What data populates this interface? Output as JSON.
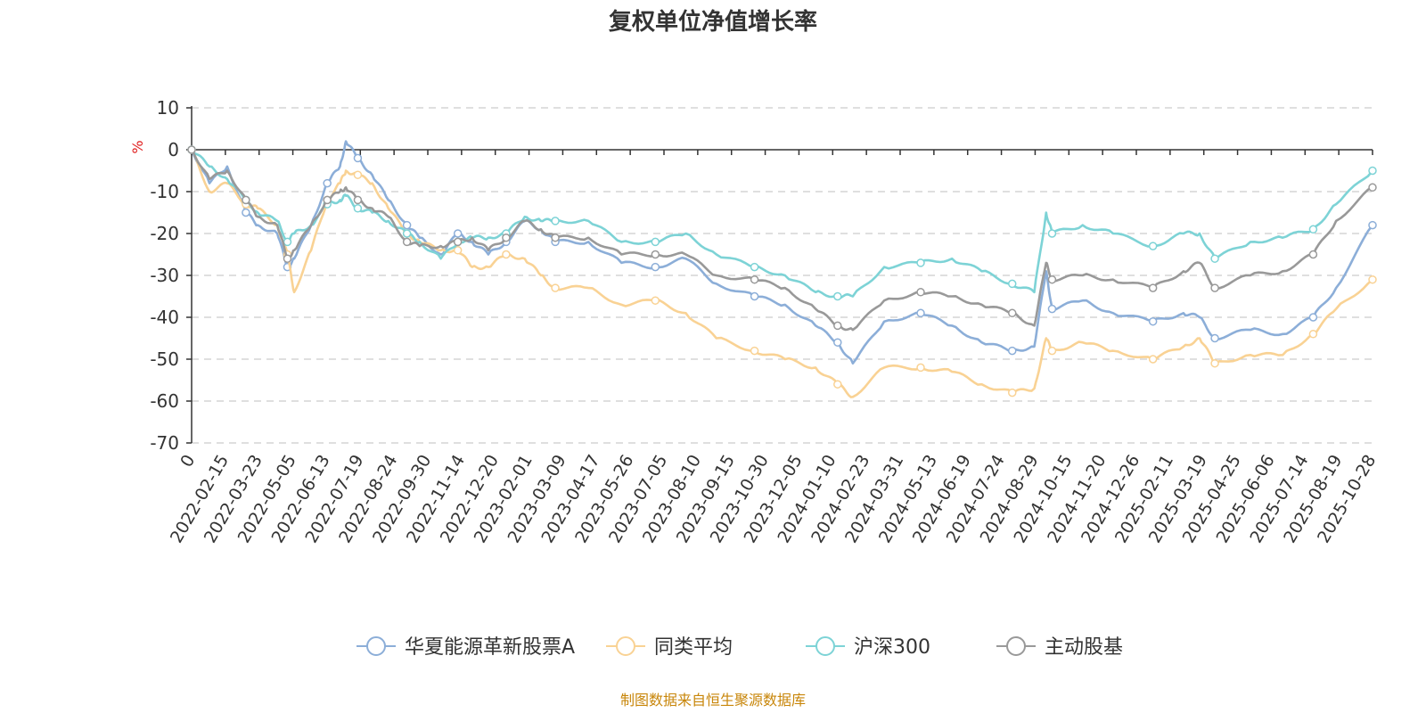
{
  "chart_data": {
    "type": "line",
    "title": "复权单位净值增长率",
    "ylabel": "%",
    "ylim": [
      -70,
      10
    ],
    "yticks": [
      10,
      0,
      -10,
      -20,
      -30,
      -40,
      -50,
      -60,
      -70
    ],
    "x_first_label": "0",
    "x_start": "2022-01-04",
    "x_end": "2025-10-28",
    "x_labels": [
      "2022-02-15",
      "2022-03-23",
      "2022-05-05",
      "2022-06-13",
      "2022-07-19",
      "2022-08-24",
      "2022-09-30",
      "2022-11-14",
      "2022-12-20",
      "2023-02-01",
      "2023-03-09",
      "2023-04-17",
      "2023-05-26",
      "2023-07-05",
      "2023-08-10",
      "2023-09-15",
      "2023-10-30",
      "2023-12-05",
      "2024-01-10",
      "2024-02-23",
      "2024-03-31",
      "2024-05-13",
      "2024-06-19",
      "2024-07-24",
      "2024-08-29",
      "2024-10-15",
      "2024-11-20",
      "2024-12-26",
      "2025-02-11",
      "2025-03-19",
      "2025-04-25",
      "2025-06-06",
      "2025-07-14",
      "2025-08-19",
      "2025-10-28"
    ],
    "x": [
      "2022-01-04",
      "2022-01-25",
      "2022-02-15",
      "2022-03-09",
      "2022-03-23",
      "2022-04-15",
      "2022-04-27",
      "2022-05-05",
      "2022-05-25",
      "2022-06-13",
      "2022-06-28",
      "2022-07-05",
      "2022-07-19",
      "2022-08-05",
      "2022-08-24",
      "2022-09-15",
      "2022-09-30",
      "2022-10-25",
      "2022-11-14",
      "2022-12-01",
      "2022-12-20",
      "2023-01-10",
      "2023-02-01",
      "2023-02-20",
      "2023-03-09",
      "2023-04-17",
      "2023-05-26",
      "2023-07-05",
      "2023-08-10",
      "2023-09-15",
      "2023-10-30",
      "2023-12-05",
      "2024-01-10",
      "2024-02-05",
      "2024-02-23",
      "2024-03-31",
      "2024-05-13",
      "2024-06-19",
      "2024-07-24",
      "2024-08-29",
      "2024-09-24",
      "2024-10-08",
      "2024-10-15",
      "2024-11-20",
      "2024-12-26",
      "2025-02-11",
      "2025-03-19",
      "2025-04-07",
      "2025-04-25",
      "2025-06-06",
      "2025-07-14",
      "2025-08-19",
      "2025-09-15",
      "2025-10-28"
    ],
    "series": [
      {
        "name": "华夏能源革新股票A",
        "color": "#8caed8",
        "values": [
          0,
          -8,
          -4,
          -15,
          -18,
          -20,
          -28,
          -26,
          -18,
          -8,
          -4,
          2,
          -2,
          -6,
          -12,
          -18,
          -21,
          -25,
          -20,
          -22,
          -25,
          -22,
          -17,
          -19,
          -22,
          -22,
          -27,
          -28,
          -26,
          -32,
          -35,
          -37,
          -42,
          -46,
          -51,
          -41,
          -39,
          -42,
          -46,
          -48,
          -47,
          -29,
          -38,
          -36,
          -39,
          -41,
          -39,
          -40,
          -45,
          -43,
          -44,
          -40,
          -33,
          -18
        ]
      },
      {
        "name": "同类平均",
        "color": "#f9d294",
        "values": [
          0,
          -10,
          -8,
          -13,
          -14,
          -18,
          -25,
          -34,
          -24,
          -12,
          -8,
          -5,
          -6,
          -8,
          -14,
          -20,
          -22,
          -24,
          -24,
          -28,
          -28,
          -25,
          -26,
          -30,
          -33,
          -33,
          -37,
          -36,
          -39,
          -45,
          -48,
          -50,
          -52,
          -56,
          -59,
          -52,
          -52,
          -53,
          -56,
          -58,
          -57,
          -45,
          -48,
          -46,
          -48,
          -50,
          -47,
          -45,
          -51,
          -49,
          -49,
          -44,
          -38,
          -31
        ]
      },
      {
        "name": "沪深300",
        "color": "#7dd3d6",
        "values": [
          0,
          -4,
          -7,
          -12,
          -15,
          -17,
          -22,
          -20,
          -18,
          -13,
          -12,
          -11,
          -14,
          -15,
          -17,
          -20,
          -22,
          -26,
          -22,
          -21,
          -21,
          -20,
          -16,
          -17,
          -17,
          -17,
          -22,
          -22,
          -20,
          -25,
          -28,
          -30,
          -34,
          -35,
          -35,
          -28,
          -27,
          -26,
          -29,
          -32,
          -34,
          -15,
          -20,
          -18,
          -20,
          -23,
          -20,
          -20,
          -26,
          -22,
          -21,
          -19,
          -13,
          -5
        ]
      },
      {
        "name": "主动股基",
        "color": "#999999",
        "values": [
          0,
          -7,
          -5,
          -12,
          -16,
          -18,
          -26,
          -24,
          -18,
          -12,
          -10,
          -9,
          -12,
          -14,
          -16,
          -22,
          -23,
          -23,
          -22,
          -21,
          -24,
          -21,
          -17,
          -19,
          -21,
          -21,
          -25,
          -25,
          -25,
          -30,
          -31,
          -33,
          -38,
          -42,
          -43,
          -36,
          -34,
          -35,
          -37,
          -39,
          -42,
          -27,
          -31,
          -30,
          -31,
          -33,
          -29,
          -27,
          -33,
          -30,
          -29,
          -25,
          -17,
          -9
        ]
      }
    ],
    "source_note": "制图数据来自恒生聚源数据库"
  }
}
